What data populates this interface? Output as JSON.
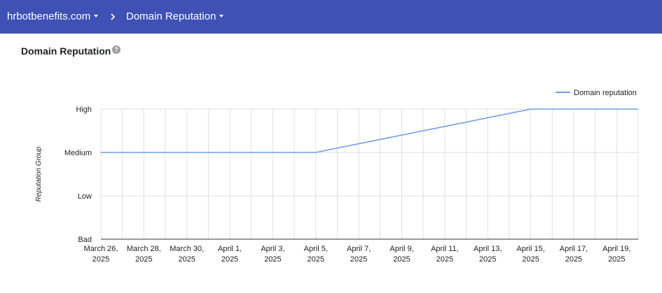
{
  "header": {
    "property": "hrbotbenefits.com",
    "report": "Domain Reputation"
  },
  "page": {
    "title": "Domain Reputation",
    "help_glyph": "?"
  },
  "chart_data": {
    "type": "line",
    "title": "",
    "xlabel": "",
    "ylabel": "Reputation Group",
    "y_levels": [
      "Bad",
      "Low",
      "Medium",
      "High"
    ],
    "ylim": [
      0,
      3
    ],
    "x_start": "March 26, 2025",
    "x_end": "April 20, 2025",
    "x_ticks": [
      [
        "March 26,",
        "2025"
      ],
      [
        "March 28,",
        "2025"
      ],
      [
        "March 30,",
        "2025"
      ],
      [
        "April 1,",
        "2025"
      ],
      [
        "April 3,",
        "2025"
      ],
      [
        "April 5,",
        "2025"
      ],
      [
        "April 7,",
        "2025"
      ],
      [
        "April 9,",
        "2025"
      ],
      [
        "April 11,",
        "2025"
      ],
      [
        "April 13,",
        "2025"
      ],
      [
        "April 15,",
        "2025"
      ],
      [
        "April 17,",
        "2025"
      ],
      [
        "April 19,",
        "2025"
      ]
    ],
    "grid": true,
    "legend_position": "top-right",
    "series": [
      {
        "name": "Domain reputation",
        "color": "#6f9ce6",
        "points": [
          {
            "date": "March 26, 2025",
            "level": "Medium"
          },
          {
            "date": "April 5, 2025",
            "level": "Medium"
          },
          {
            "date": "April 15, 2025",
            "level": "High"
          },
          {
            "date": "April 20, 2025",
            "level": "High"
          }
        ]
      }
    ]
  }
}
